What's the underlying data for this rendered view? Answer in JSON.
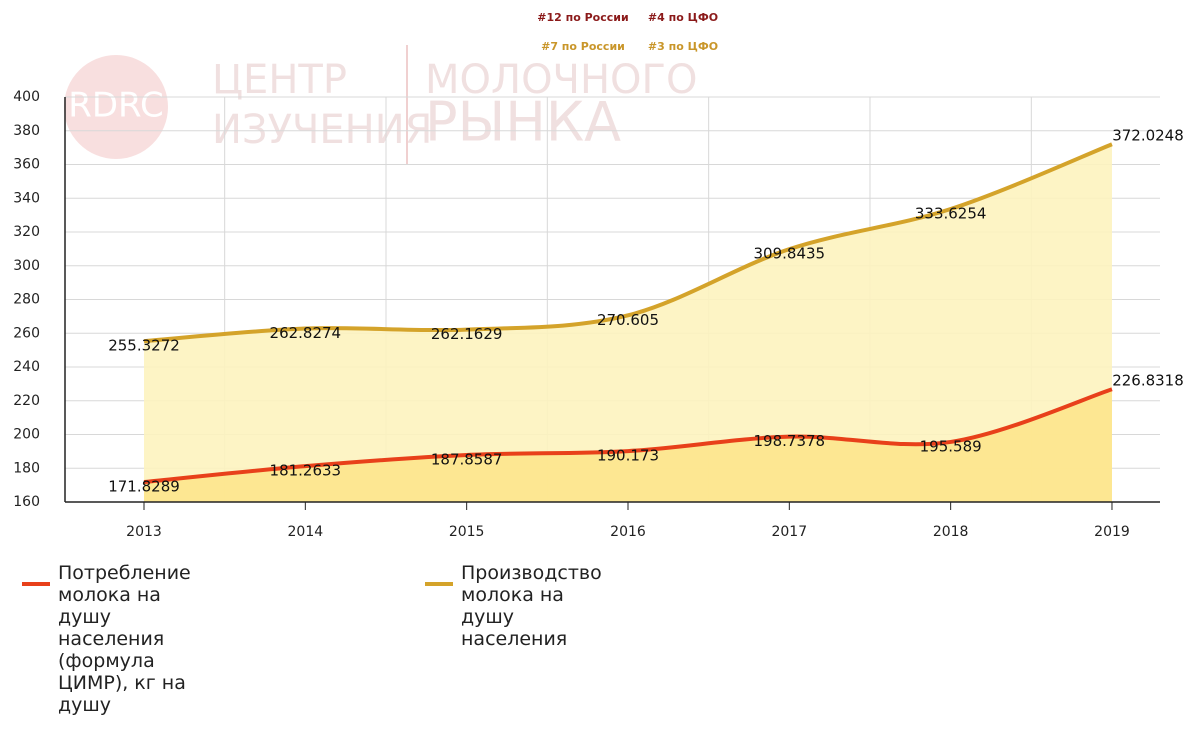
{
  "chart_data": {
    "type": "area",
    "annotations": [
      {
        "text": "#12 по России",
        "color": "#8b1a1a"
      },
      {
        "text": "#4 по ЦФО",
        "color": "#8b1a1a"
      },
      {
        "text": "#7 по России",
        "color": "#c9962a"
      },
      {
        "text": "#3 по ЦФО",
        "color": "#c9962a"
      }
    ],
    "watermark": [
      "RDRC",
      "ЦЕНТР",
      "ИЗУЧЕНИЯ",
      "МОЛОЧНОГО",
      "РЫНКА"
    ],
    "categories": [
      "2013",
      "2014",
      "2015",
      "2016",
      "2017",
      "2018",
      "2019"
    ],
    "series": [
      {
        "name": "Потребление молока на душу населения (формула ЦИМР), кг на душу",
        "color": "#e8401a",
        "fill": "#fde58c",
        "values": [
          171.8289,
          181.2633,
          187.8587,
          190.173,
          198.7378,
          195.589,
          226.8318
        ]
      },
      {
        "name": "Производство молока на душу населения",
        "color": "#d4a32a",
        "fill": "#fdf3bf",
        "values": [
          255.3272,
          262.8274,
          262.1629,
          270.605,
          309.8435,
          333.6254,
          372.0248
        ]
      }
    ],
    "ylim": [
      160,
      400
    ],
    "yticks": [
      160,
      180,
      200,
      220,
      240,
      260,
      280,
      300,
      320,
      340,
      360,
      380,
      400
    ],
    "grid": true
  }
}
